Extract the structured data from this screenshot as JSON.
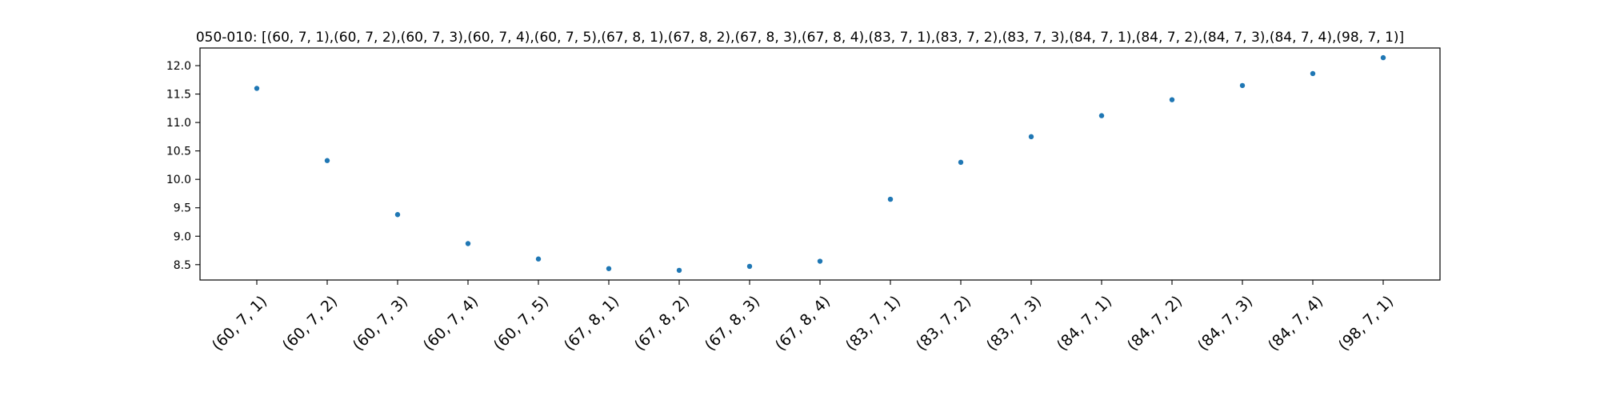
{
  "chart_data": {
    "type": "scatter",
    "title": "050-010: [(60, 7, 1),(60, 7, 2),(60, 7, 3),(60, 7, 4),(60, 7, 5),(67, 8, 1),(67, 8, 2),(67, 8, 3),(67, 8, 4),(83, 7, 1),(83, 7, 2),(83, 7, 3),(84, 7, 1),(84, 7, 2),(84, 7, 3),(84, 7, 4),(98, 7, 1)]",
    "xlabel": "",
    "ylabel": "",
    "categories": [
      "(60, 7, 1)",
      "(60, 7, 2)",
      "(60, 7, 3)",
      "(60, 7, 4)",
      "(60, 7, 5)",
      "(67, 8, 1)",
      "(67, 8, 2)",
      "(67, 8, 3)",
      "(67, 8, 4)",
      "(83, 7, 1)",
      "(83, 7, 2)",
      "(83, 7, 3)",
      "(84, 7, 1)",
      "(84, 7, 2)",
      "(84, 7, 3)",
      "(84, 7, 4)",
      "(98, 7, 1)"
    ],
    "values": [
      11.6,
      10.33,
      9.38,
      8.87,
      8.6,
      8.43,
      8.4,
      8.47,
      8.56,
      9.65,
      10.3,
      10.75,
      11.12,
      11.4,
      11.65,
      11.86,
      12.14
    ],
    "yticks": [
      "8.5",
      "9.0",
      "9.5",
      "10.0",
      "10.5",
      "11.0",
      "11.5",
      "12.0"
    ],
    "ylim": [
      8.23,
      12.31
    ],
    "grid": false,
    "legend": "none",
    "point_color": "#1f77b4"
  }
}
